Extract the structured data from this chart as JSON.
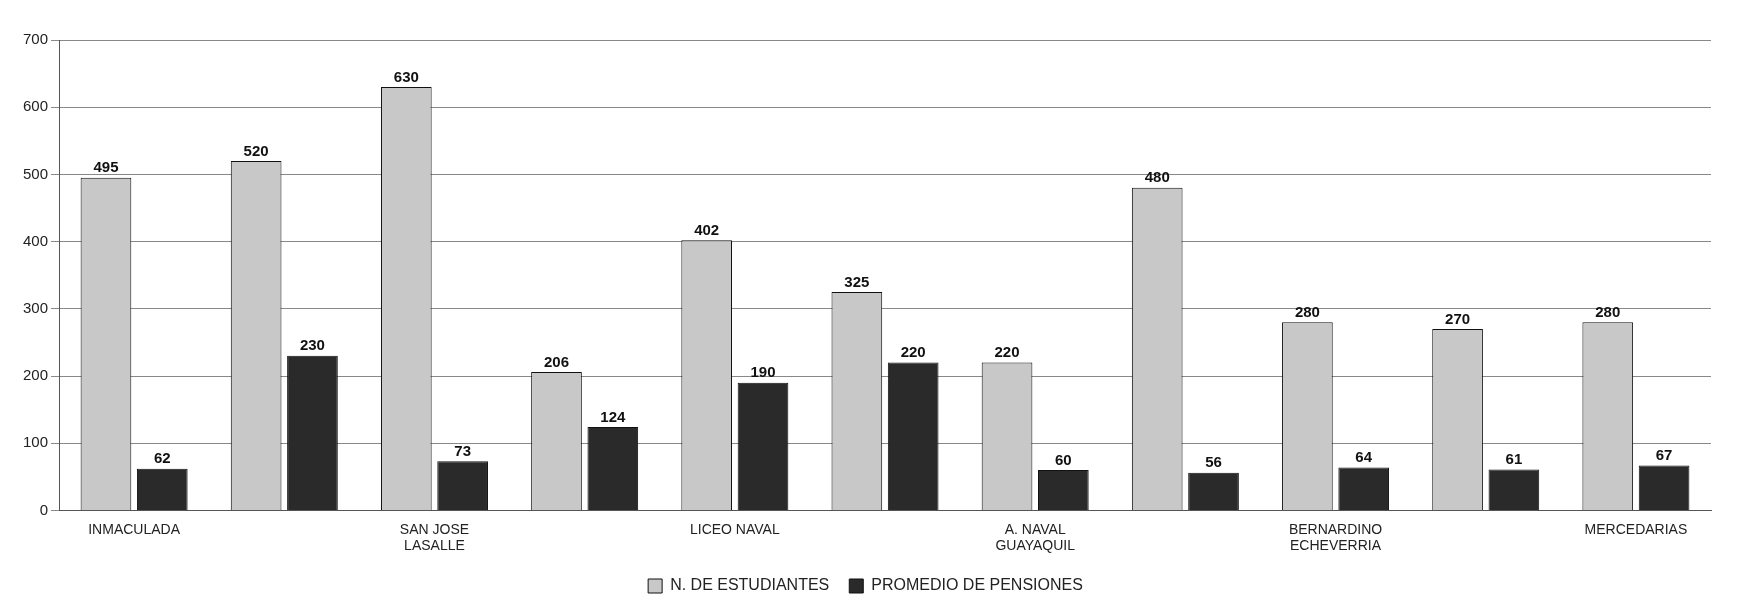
{
  "chart_data": {
    "type": "bar",
    "categories": [
      "INMACULADA",
      null,
      "SAN JOSE\nLASALLE",
      null,
      "LICEO NAVAL",
      null,
      "A. NAVAL\nGUAYAQUIL",
      null,
      "BERNARDINO\nECHEVERRIA",
      null,
      "MERCEDARIAS"
    ],
    "series": [
      {
        "name": "N. DE ESTUDIANTES",
        "color": "#c8c8c8",
        "values": [
          495,
          520,
          630,
          206,
          402,
          325,
          220,
          480,
          280,
          270,
          280
        ]
      },
      {
        "name": "PROMEDIO DE PENSIONES",
        "color": "#2a2a2a",
        "values": [
          62,
          230,
          73,
          124,
          190,
          220,
          60,
          56,
          64,
          61,
          67
        ]
      }
    ],
    "ylim": [
      0,
      700
    ],
    "yticks": [
      0,
      100,
      200,
      300,
      400,
      500,
      600,
      700
    ],
    "grid": "y",
    "legend": "bottom",
    "data_labels": true
  }
}
